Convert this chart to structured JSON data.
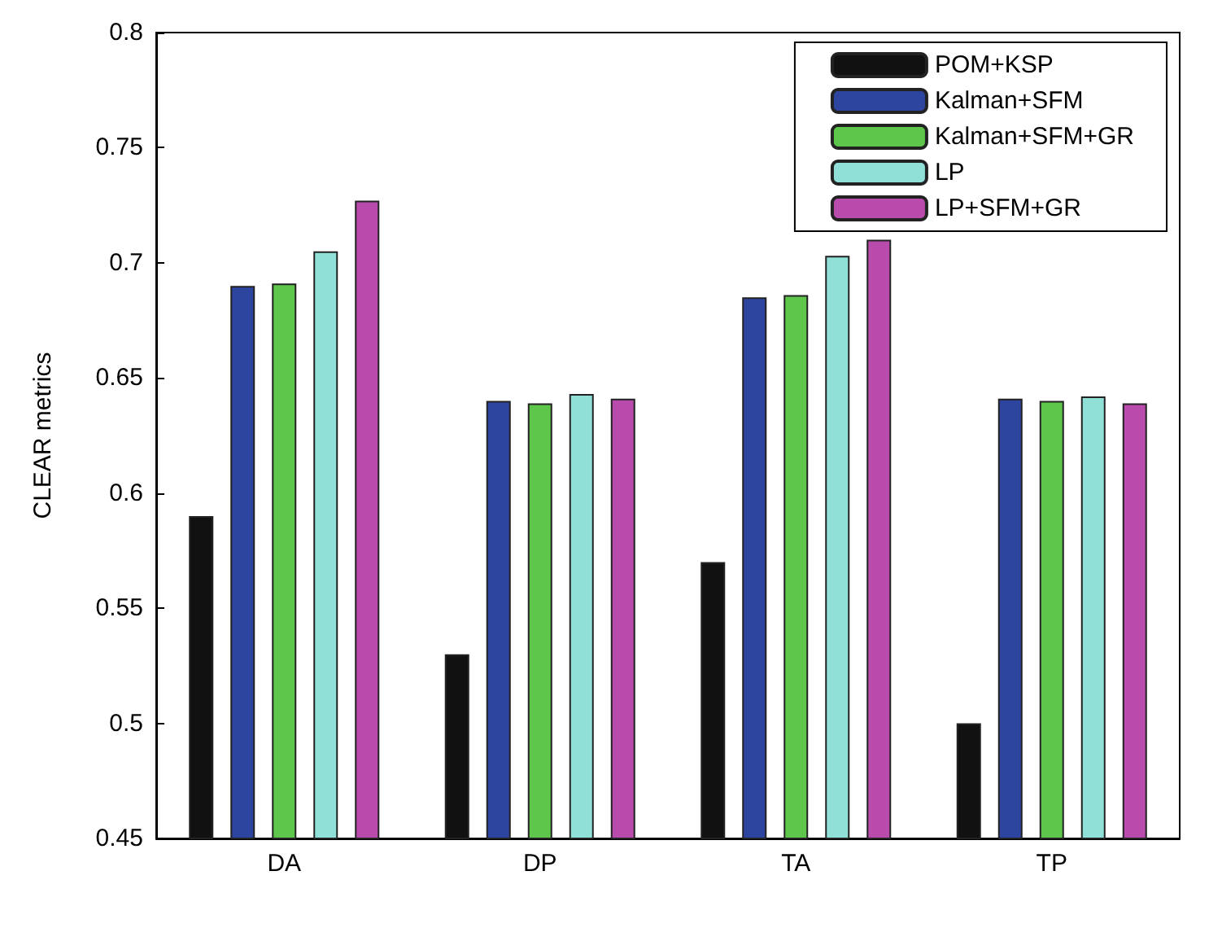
{
  "chart_data": {
    "type": "bar",
    "ylabel": "CLEAR metrics",
    "categories": [
      "DA",
      "DP",
      "TA",
      "TP"
    ],
    "series": [
      {
        "name": "POM+KSP",
        "color": "#111111",
        "values": [
          0.59,
          0.53,
          0.57,
          0.5
        ]
      },
      {
        "name": "Kalman+SFM",
        "color": "#2e45a0",
        "values": [
          0.69,
          0.64,
          0.685,
          0.641
        ]
      },
      {
        "name": "Kalman+SFM+GR",
        "color": "#5ec64a",
        "values": [
          0.691,
          0.639,
          0.686,
          0.64
        ]
      },
      {
        "name": "LP",
        "color": "#90e0d8",
        "values": [
          0.705,
          0.643,
          0.703,
          0.642
        ]
      },
      {
        "name": "LP+SFM+GR",
        "color": "#b84bac",
        "values": [
          0.727,
          0.641,
          0.71,
          0.639
        ]
      }
    ],
    "ylim": [
      0.45,
      0.8
    ],
    "yticks": [
      0.45,
      0.5,
      0.55,
      0.6,
      0.65,
      0.7,
      0.75,
      0.8
    ],
    "legend": "top right"
  }
}
